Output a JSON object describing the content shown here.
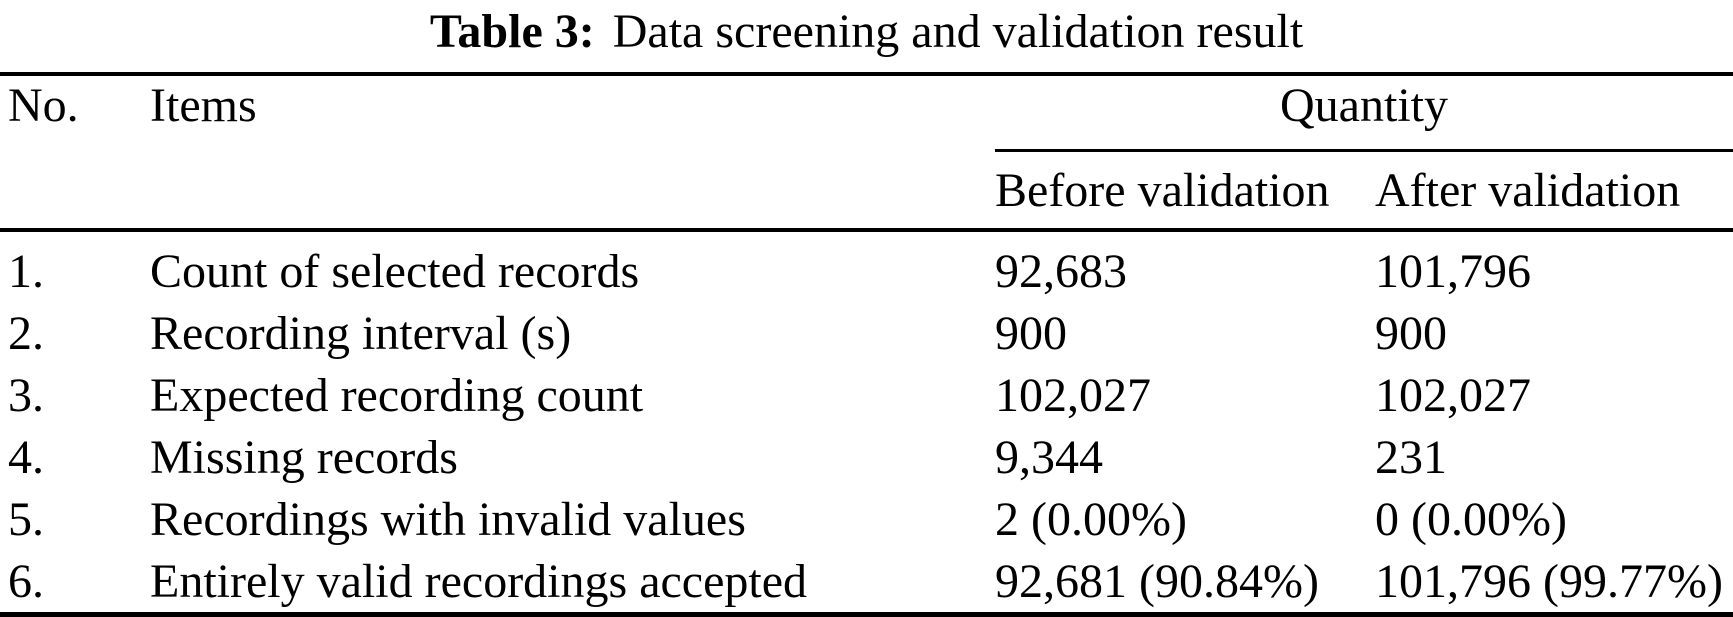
{
  "caption": {
    "label": "Table 3:",
    "title": "Data screening and validation result"
  },
  "table": {
    "columns": {
      "no": "No.",
      "items": "Items",
      "quantity_group": "Quantity",
      "before": "Before validation",
      "after": "After validation"
    },
    "rows": [
      {
        "no": "1.",
        "item": "Count of selected records",
        "before": "92,683",
        "after": "101,796"
      },
      {
        "no": "2.",
        "item": "Recording interval (s)",
        "before": "900",
        "after": "900"
      },
      {
        "no": "3.",
        "item": "Expected recording count",
        "before": "102,027",
        "after": "102,027"
      },
      {
        "no": "4.",
        "item": "Missing records",
        "before": "9,344",
        "after": "231"
      },
      {
        "no": "5.",
        "item": "Recordings with invalid values",
        "before": "2 (0.00%)",
        "after": "0 (0.00%)"
      },
      {
        "no": "6.",
        "item": "Entirely valid recordings accepted",
        "before": "92,681 (90.84%)",
        "after": "101,796 (99.77%)"
      }
    ]
  },
  "colors": {
    "text": "#000000",
    "background": "#ffffff",
    "rule": "#000000"
  }
}
